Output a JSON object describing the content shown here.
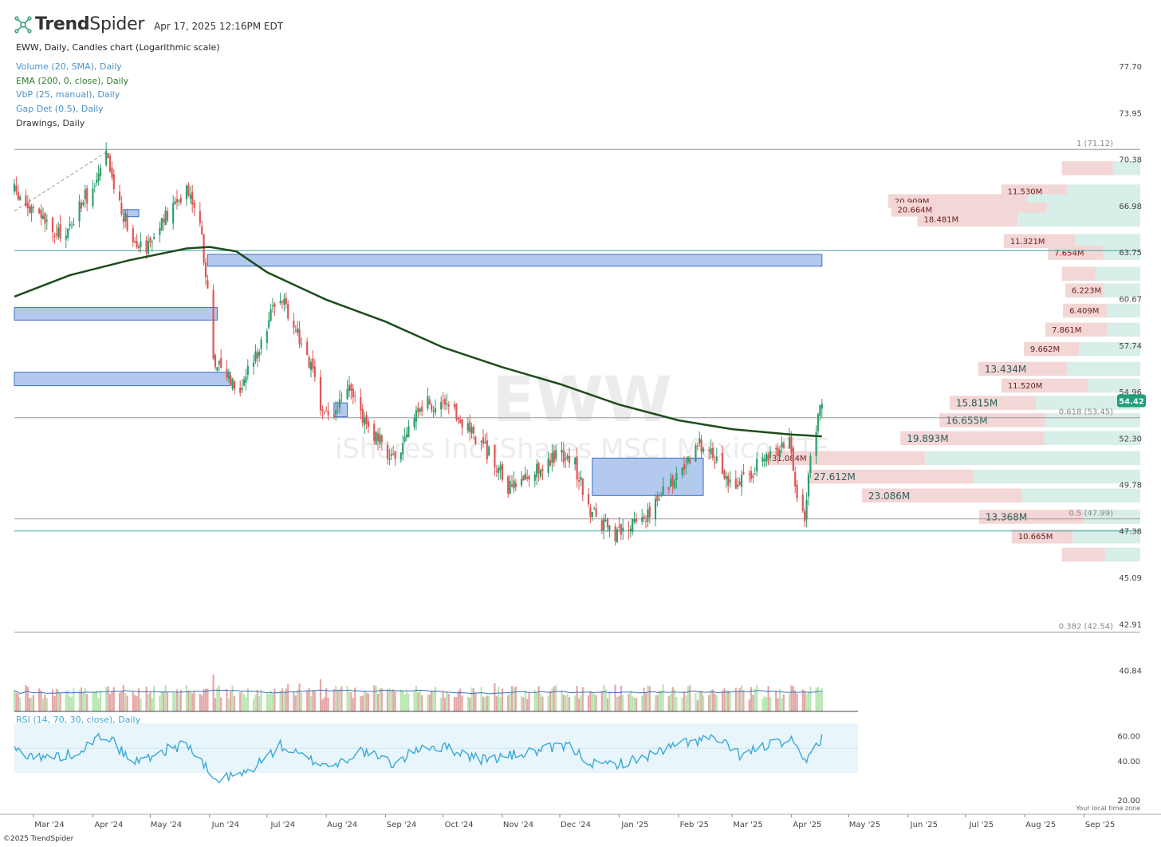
{
  "header": {
    "brand_bold": "Trend",
    "brand_light": "Spider",
    "timestamp": "Apr 17, 2025 12:16PM EDT",
    "chart_title": "EWW, Daily, Candles chart (Logarithmic scale)"
  },
  "indicators": [
    {
      "label": "Volume (20, SMA), Daily",
      "color": "#4a90c8"
    },
    {
      "label": "EMA (200, 0, close), Daily",
      "color": "#2e7d32"
    },
    {
      "label": "VbP (25, manual), Daily",
      "color": "#4a90c8"
    },
    {
      "label": "Gap Det (0.5), Daily",
      "color": "#4a90c8"
    },
    {
      "label": "Drawings, Daily",
      "color": "#333333"
    }
  ],
  "watermark": {
    "symbol": "EWW",
    "name": "iShares Inc iShares MSCI Mexico ETF"
  },
  "footer": {
    "copyright": "©2025 TrendSpider",
    "tz_note": "Your local time zone"
  },
  "colors": {
    "up": "#2e9e6b",
    "down": "#e05555",
    "ema": "#1b4d1b",
    "gap_fill": "#b3c9ee",
    "gap_stroke": "#3a6fc4",
    "vbp_down": "#f3d6d6",
    "vbp_up": "#d8eee8",
    "rsi_line": "#3aa8d8",
    "rsi_band": "#e8f5fa",
    "price_badge": "#1e9e7a"
  },
  "chart_data": [
    {
      "type": "candlestick",
      "symbol": "EWW",
      "scale": "log",
      "ylim": [
        39.5,
        79.5
      ],
      "price_ticks": [
        "77.70",
        "73.95",
        "70.38",
        "66.98",
        "63.75",
        "60.67",
        "57.74",
        "54.96",
        "52.30",
        "49.78",
        "47.38",
        "45.09",
        "42.91",
        "40.84"
      ],
      "x_ticks": [
        "Mar '24",
        "Apr '24",
        "May '24",
        "Jun '24",
        "Jul '24",
        "Aug '24",
        "Sep '24",
        "Oct '24",
        "Nov '24",
        "Dec '24",
        "Jan '25",
        "Feb '25",
        "Mar '25",
        "Apr '25",
        "May '25",
        "Jun '25",
        "Jul '25",
        "Aug '25",
        "Sep '25"
      ],
      "x_tick_dates": [
        "2024-03-01",
        "2024-04-01",
        "2024-05-01",
        "2024-06-01",
        "2024-07-01",
        "2024-08-01",
        "2024-09-01",
        "2024-10-01",
        "2024-11-01",
        "2024-12-01",
        "2025-01-01",
        "2025-02-01",
        "2025-03-01",
        "2025-04-01",
        "2025-05-01",
        "2025-06-01",
        "2025-07-01",
        "2025-08-01",
        "2025-09-01"
      ],
      "last_price": "54.42",
      "close_path": [
        [
          "2024-02-20",
          68.0
        ],
        [
          "2024-02-27",
          66.8
        ],
        [
          "2024-03-05",
          66.2
        ],
        [
          "2024-03-12",
          64.8
        ],
        [
          "2024-03-19",
          65.2
        ],
        [
          "2024-03-26",
          67.2
        ],
        [
          "2024-04-02",
          68.4
        ],
        [
          "2024-04-08",
          70.5
        ],
        [
          "2024-04-15",
          67.0
        ],
        [
          "2024-04-22",
          64.8
        ],
        [
          "2024-04-29",
          64.2
        ],
        [
          "2024-05-06",
          65.5
        ],
        [
          "2024-05-13",
          66.8
        ],
        [
          "2024-05-20",
          68.5
        ],
        [
          "2024-05-27",
          66.0
        ],
        [
          "2024-06-03",
          57.0
        ],
        [
          "2024-06-10",
          56.0
        ],
        [
          "2024-06-17",
          55.2
        ],
        [
          "2024-06-24",
          56.8
        ],
        [
          "2024-07-01",
          59.0
        ],
        [
          "2024-07-08",
          61.0
        ],
        [
          "2024-07-15",
          59.0
        ],
        [
          "2024-07-22",
          57.2
        ],
        [
          "2024-07-29",
          54.0
        ],
        [
          "2024-08-05",
          53.5
        ],
        [
          "2024-08-12",
          55.2
        ],
        [
          "2024-08-19",
          53.8
        ],
        [
          "2024-08-26",
          52.4
        ],
        [
          "2024-09-02",
          51.6
        ],
        [
          "2024-09-09",
          51.2
        ],
        [
          "2024-09-16",
          53.8
        ],
        [
          "2024-09-23",
          54.3
        ],
        [
          "2024-09-30",
          54.0
        ],
        [
          "2024-10-07",
          53.6
        ],
        [
          "2024-10-14",
          53.0
        ],
        [
          "2024-10-21",
          52.0
        ],
        [
          "2024-10-28",
          51.0
        ],
        [
          "2024-11-04",
          49.5
        ],
        [
          "2024-11-11",
          50.0
        ],
        [
          "2024-11-18",
          50.6
        ],
        [
          "2024-11-25",
          51.0
        ],
        [
          "2024-12-02",
          51.5
        ],
        [
          "2024-12-09",
          50.8
        ],
        [
          "2024-12-16",
          48.5
        ],
        [
          "2024-12-23",
          47.8
        ],
        [
          "2024-12-30",
          47.0
        ],
        [
          "2025-01-06",
          47.6
        ],
        [
          "2025-01-13",
          48.0
        ],
        [
          "2025-01-20",
          48.8
        ],
        [
          "2025-01-27",
          49.9
        ],
        [
          "2025-02-03",
          50.4
        ],
        [
          "2025-02-10",
          51.8
        ],
        [
          "2025-02-17",
          52.0
        ],
        [
          "2025-02-24",
          50.5
        ],
        [
          "2025-03-03",
          49.6
        ],
        [
          "2025-03-10",
          50.4
        ],
        [
          "2025-03-17",
          51.0
        ],
        [
          "2025-03-24",
          51.6
        ],
        [
          "2025-03-31",
          52.2
        ],
        [
          "2025-04-04",
          49.3
        ],
        [
          "2025-04-08",
          48.2
        ],
        [
          "2025-04-11",
          51.3
        ],
        [
          "2025-04-17",
          54.42
        ]
      ],
      "ema_200": [
        [
          "2024-02-20",
          60.8
        ],
        [
          "2024-03-20",
          62.2
        ],
        [
          "2024-04-20",
          63.2
        ],
        [
          "2024-05-20",
          64.0
        ],
        [
          "2024-06-01",
          64.1
        ],
        [
          "2024-06-15",
          63.8
        ],
        [
          "2024-07-01",
          62.4
        ],
        [
          "2024-08-01",
          60.6
        ],
        [
          "2024-09-01",
          59.2
        ],
        [
          "2024-10-01",
          57.6
        ],
        [
          "2024-11-01",
          56.4
        ],
        [
          "2024-12-01",
          55.4
        ],
        [
          "2025-01-01",
          54.2
        ],
        [
          "2025-02-01",
          53.3
        ],
        [
          "2025-03-01",
          52.8
        ],
        [
          "2025-04-01",
          52.5
        ],
        [
          "2025-04-17",
          52.4
        ]
      ],
      "gaps": [
        {
          "start": "2024-05-31",
          "end": "2025-04-17",
          "low": 62.8,
          "high": 63.6
        },
        {
          "start": "2024-02-20",
          "end": "2024-06-05",
          "low": 59.3,
          "high": 60.1
        },
        {
          "start": "2024-02-20",
          "end": "2024-06-12",
          "low": 55.3,
          "high": 56.1
        },
        {
          "start": "2024-04-17",
          "end": "2024-04-25",
          "low": 66.2,
          "high": 66.7
        },
        {
          "start": "2024-08-05",
          "end": "2024-08-12",
          "low": 53.5,
          "high": 54.3
        },
        {
          "start": "2024-12-18",
          "end": "2025-02-14",
          "low": 49.2,
          "high": 51.2
        }
      ],
      "horizontal_lines": [
        {
          "price": 71.12,
          "label": "1 (71.12)"
        },
        {
          "price": 63.85,
          "label": ""
        },
        {
          "price": 53.45,
          "label": "0.618 (53.45)"
        },
        {
          "price": 47.99,
          "label": "0.5 (47.99)"
        },
        {
          "price": 47.38,
          "label": ""
        },
        {
          "price": 42.54,
          "label": "0.382 (42.54)"
        }
      ],
      "trendline": [
        [
          "2024-02-20",
          66.6
        ],
        [
          "2024-04-08",
          70.9
        ]
      ],
      "volume_by_price": [
        {
          "price": 69.7,
          "label": ""
        },
        {
          "price": 68.0,
          "label": "11.530M"
        },
        {
          "price": 67.3,
          "label": "20.909M"
        },
        {
          "price": 66.7,
          "label": "20.664M"
        },
        {
          "price": 66.0,
          "label": "18.481M"
        },
        {
          "price": 64.5,
          "label": "11.321M"
        },
        {
          "price": 63.7,
          "label": "7.654M"
        },
        {
          "price": 62.3,
          "label": ""
        },
        {
          "price": 61.2,
          "label": "6.223M"
        },
        {
          "price": 59.9,
          "label": "6.409M"
        },
        {
          "price": 58.7,
          "label": "7.861M"
        },
        {
          "price": 57.5,
          "label": "9.662M"
        },
        {
          "price": 56.3,
          "label": "13.434M"
        },
        {
          "price": 55.3,
          "label": "11.520M"
        },
        {
          "price": 54.3,
          "label": "15.815M"
        },
        {
          "price": 53.3,
          "label": "16.655M"
        },
        {
          "price": 52.3,
          "label": "19.893M"
        },
        {
          "price": 51.2,
          "label": "31.084M"
        },
        {
          "price": 50.2,
          "label": "27.612M"
        },
        {
          "price": 49.2,
          "label": "23.086M"
        },
        {
          "price": 48.1,
          "label": "13.368M"
        },
        {
          "price": 47.1,
          "label": "10.665M"
        },
        {
          "price": 46.2,
          "label": ""
        }
      ]
    },
    {
      "type": "bar",
      "title": "Volume (20, SMA), Daily",
      "note": "daily volume bars with 20-day SMA line"
    },
    {
      "type": "line",
      "title": "RSI (14, 70, 30, close), Daily",
      "ylim": [
        20,
        70
      ],
      "y_ticks": [
        "60.00",
        "40.00",
        "20.00"
      ],
      "points": [
        [
          "2024-02-20",
          49
        ],
        [
          "2024-03-05",
          42
        ],
        [
          "2024-03-20",
          45
        ],
        [
          "2024-04-08",
          61
        ],
        [
          "2024-04-22",
          38
        ],
        [
          "2024-05-06",
          47
        ],
        [
          "2024-05-20",
          54
        ],
        [
          "2024-06-04",
          24
        ],
        [
          "2024-06-20",
          30
        ],
        [
          "2024-07-08",
          52
        ],
        [
          "2024-07-22",
          41
        ],
        [
          "2024-08-05",
          36
        ],
        [
          "2024-08-19",
          48
        ],
        [
          "2024-09-06",
          37
        ],
        [
          "2024-09-20",
          52
        ],
        [
          "2024-10-04",
          50
        ],
        [
          "2024-10-21",
          41
        ],
        [
          "2024-11-05",
          44
        ],
        [
          "2024-11-20",
          48
        ],
        [
          "2024-12-05",
          52
        ],
        [
          "2024-12-20",
          36
        ],
        [
          "2025-01-06",
          39
        ],
        [
          "2025-01-20",
          46
        ],
        [
          "2025-02-05",
          55
        ],
        [
          "2025-02-20",
          58
        ],
        [
          "2025-03-06",
          44
        ],
        [
          "2025-03-20",
          53
        ],
        [
          "2025-04-01",
          55
        ],
        [
          "2025-04-08",
          38
        ],
        [
          "2025-04-17",
          59
        ]
      ]
    }
  ]
}
